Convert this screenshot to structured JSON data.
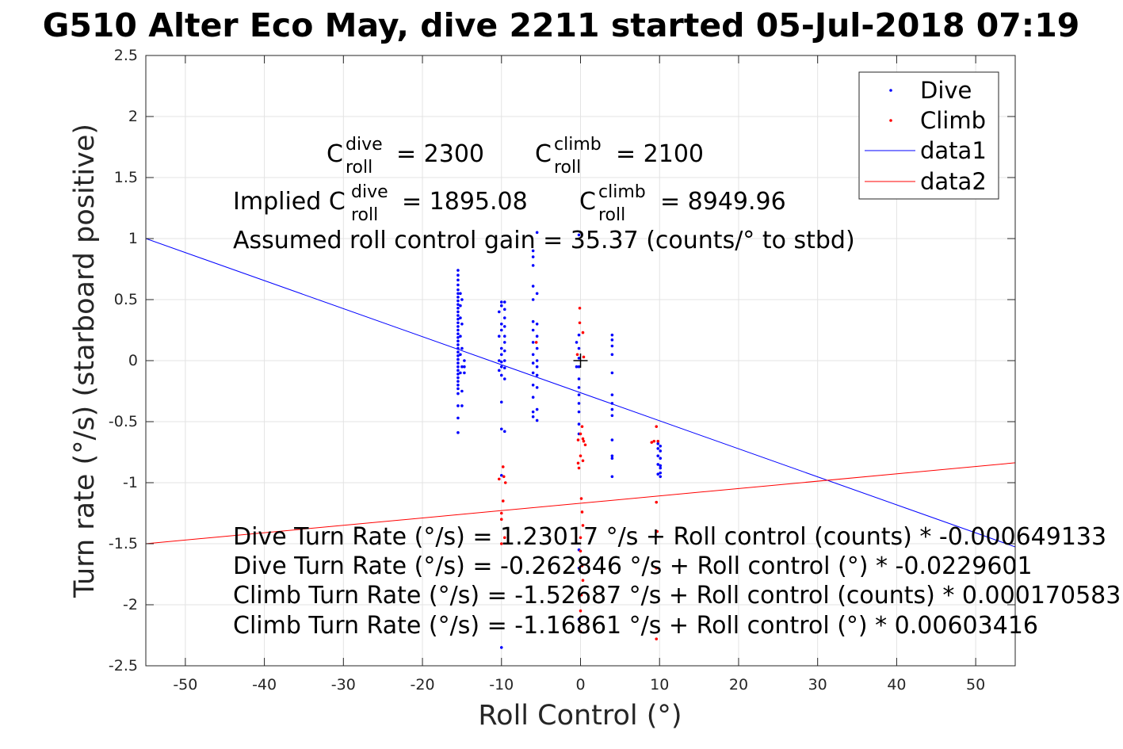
{
  "chart_data": {
    "type": "scatter",
    "title": "G510 Alter Eco May, dive 2211 started 05-Jul-2018 07:19",
    "xlabel": "Roll Control (°)",
    "ylabel": "Turn rate (°/s) (starboard positive)",
    "xlim": [
      -55,
      55
    ],
    "ylim": [
      -2.5,
      2.5
    ],
    "xticks": [
      -50,
      -40,
      -30,
      -20,
      -10,
      0,
      10,
      20,
      30,
      40,
      50
    ],
    "xtick_labels": [
      "-50",
      "-40",
      "-30",
      "-20",
      "-10",
      "0",
      "10",
      "20",
      "30",
      "40",
      "50"
    ],
    "yticks": [
      2.5,
      2,
      1.5,
      1,
      0.5,
      0,
      -0.5,
      -1,
      -1.5,
      -2,
      -2.5
    ],
    "ytick_labels": [
      "2.5",
      "2",
      "1.5",
      "1",
      "0.5",
      "0",
      "-0.5",
      "-1",
      "-1.5",
      "-2",
      "-2.5"
    ],
    "grid": true,
    "legend_position": "top-right",
    "legend": [
      "Dive",
      "Climb",
      "data1",
      "data2"
    ],
    "colors": {
      "dive": "#0000ff",
      "climb": "#ff0000",
      "marker": "#000000"
    },
    "series": [
      {
        "name": "Dive",
        "kind": "points",
        "points": [
          [
            -15.5,
            0.74
          ],
          [
            -15.5,
            0.7
          ],
          [
            -15.5,
            0.66
          ],
          [
            -15.5,
            0.62
          ],
          [
            -15.5,
            0.58
          ],
          [
            -15.5,
            0.55
          ],
          [
            -15.5,
            0.52
          ],
          [
            -15.5,
            0.49
          ],
          [
            -15.5,
            0.46
          ],
          [
            -15.5,
            0.43
          ],
          [
            -15.5,
            0.4
          ],
          [
            -15.5,
            0.37
          ],
          [
            -15.5,
            0.34
          ],
          [
            -15.5,
            0.31
          ],
          [
            -15.5,
            0.28
          ],
          [
            -15.5,
            0.25
          ],
          [
            -15.5,
            0.22
          ],
          [
            -15.5,
            0.19
          ],
          [
            -15.5,
            0.16
          ],
          [
            -15.5,
            0.13
          ],
          [
            -15.5,
            0.1
          ],
          [
            -15.5,
            0.07
          ],
          [
            -15.5,
            0.04
          ],
          [
            -15.5,
            0.01
          ],
          [
            -15.5,
            -0.02
          ],
          [
            -15.5,
            -0.05
          ],
          [
            -15.5,
            -0.08
          ],
          [
            -15.5,
            -0.11
          ],
          [
            -15.5,
            -0.14
          ],
          [
            -15.5,
            -0.17
          ],
          [
            -15.5,
            -0.2
          ],
          [
            -15.5,
            -0.23
          ],
          [
            -15.5,
            -0.27
          ],
          [
            -15.5,
            -0.37
          ],
          [
            -15.5,
            -0.47
          ],
          [
            -15.5,
            -0.59
          ],
          [
            -15.2,
            0.55
          ],
          [
            -15.2,
            0.45
          ],
          [
            -15.2,
            0.35
          ],
          [
            -15.2,
            0.2
          ],
          [
            -15.2,
            0.05
          ],
          [
            -15.2,
            -0.1
          ],
          [
            -15.0,
            0.5
          ],
          [
            -15.0,
            0.3
          ],
          [
            -15.0,
            0.1
          ],
          [
            -15.0,
            -0.05
          ],
          [
            -15.0,
            -0.25
          ],
          [
            -15.0,
            -0.37
          ],
          [
            -14.7,
            0.0
          ],
          [
            -14.7,
            -0.05
          ],
          [
            -14.7,
            -0.1
          ],
          [
            -10.0,
            0.48
          ],
          [
            -10.0,
            0.45
          ],
          [
            -10.0,
            0.3
          ],
          [
            -10.0,
            0.25
          ],
          [
            -10.0,
            0.1
          ],
          [
            -10.0,
            0.05
          ],
          [
            -10.0,
            -0.01
          ],
          [
            -10.0,
            -0.05
          ],
          [
            -10.0,
            -0.12
          ],
          [
            -10.0,
            -0.34
          ],
          [
            -10.0,
            -0.56
          ],
          [
            -10.0,
            -0.94
          ],
          [
            -10.0,
            -2.35
          ],
          [
            -10.3,
            0.4
          ],
          [
            -10.3,
            0.2
          ],
          [
            -10.3,
            0.0
          ],
          [
            -10.3,
            -0.08
          ],
          [
            -9.6,
            0.48
          ],
          [
            -9.6,
            0.42
          ],
          [
            -9.6,
            0.35
          ],
          [
            -9.6,
            0.28
          ],
          [
            -9.6,
            0.2
          ],
          [
            -9.6,
            0.15
          ],
          [
            -9.6,
            0.08
          ],
          [
            -9.6,
            0.0
          ],
          [
            -9.6,
            -0.06
          ],
          [
            -9.6,
            -0.15
          ],
          [
            -9.6,
            -0.58
          ],
          [
            -6.0,
            0.9
          ],
          [
            -6.0,
            0.85
          ],
          [
            -6.0,
            0.78
          ],
          [
            -6.0,
            0.61
          ],
          [
            -6.0,
            0.5
          ],
          [
            -6.0,
            0.32
          ],
          [
            -6.0,
            0.25
          ],
          [
            -6.0,
            0.15
          ],
          [
            -6.0,
            0.05
          ],
          [
            -6.0,
            -0.02
          ],
          [
            -6.0,
            -0.1
          ],
          [
            -6.0,
            -0.2
          ],
          [
            -6.0,
            -0.3
          ],
          [
            -6.0,
            -0.42
          ],
          [
            -6.0,
            -0.46
          ],
          [
            -5.5,
            1.05
          ],
          [
            -5.5,
            0.55
          ],
          [
            -5.5,
            0.3
          ],
          [
            -5.5,
            0.2
          ],
          [
            -5.5,
            0.1
          ],
          [
            -5.5,
            0.0
          ],
          [
            -5.5,
            -0.05
          ],
          [
            -5.5,
            -0.12
          ],
          [
            -5.5,
            -0.22
          ],
          [
            -5.5,
            -0.4
          ],
          [
            -5.5,
            -0.49
          ],
          [
            -0.2,
            1.03
          ],
          [
            -0.2,
            0.21
          ],
          [
            -0.2,
            0.1
          ],
          [
            -0.2,
            0.02
          ],
          [
            -0.2,
            -0.05
          ],
          [
            -0.2,
            -0.15
          ],
          [
            -0.2,
            -0.22
          ],
          [
            -0.2,
            -0.28
          ],
          [
            -0.2,
            -0.35
          ],
          [
            -0.2,
            -0.42
          ],
          [
            -0.2,
            -0.52
          ],
          [
            -0.2,
            -0.6
          ],
          [
            -0.2,
            -1.55
          ],
          [
            -0.2,
            -1.7
          ],
          [
            -0.2,
            -2.12
          ],
          [
            -0.5,
            0.15
          ],
          [
            -0.5,
            -0.05
          ],
          [
            4.0,
            0.21
          ],
          [
            4.0,
            0.17
          ],
          [
            4.0,
            0.12
          ],
          [
            4.0,
            0.05
          ],
          [
            4.0,
            -0.1
          ],
          [
            4.0,
            -0.28
          ],
          [
            4.0,
            -0.35
          ],
          [
            4.0,
            -0.4
          ],
          [
            4.0,
            -0.45
          ],
          [
            4.0,
            -0.65
          ],
          [
            4.0,
            -0.78
          ],
          [
            4.0,
            -0.8
          ],
          [
            4.0,
            -0.95
          ],
          [
            9.8,
            -0.68
          ],
          [
            9.8,
            -0.72
          ],
          [
            9.8,
            -0.78
          ],
          [
            9.8,
            -0.85
          ],
          [
            9.8,
            -0.93
          ],
          [
            10.1,
            -0.7
          ],
          [
            10.1,
            -0.74
          ],
          [
            10.1,
            -0.8
          ],
          [
            10.1,
            -0.86
          ],
          [
            10.1,
            -0.88
          ],
          [
            10.1,
            -0.92
          ],
          [
            10.1,
            -0.95
          ]
        ]
      },
      {
        "name": "Climb",
        "kind": "points",
        "points": [
          [
            -0.1,
            0.43
          ],
          [
            -0.1,
            0.31
          ],
          [
            0.3,
            0.23
          ],
          [
            -0.4,
            0.05
          ],
          [
            0.4,
            0.03
          ],
          [
            0.2,
            -0.54
          ],
          [
            0.0,
            -0.6
          ],
          [
            0.3,
            -0.64
          ],
          [
            -0.3,
            -0.65
          ],
          [
            0.4,
            -0.66
          ],
          [
            0.6,
            -0.69
          ],
          [
            0.0,
            -0.78
          ],
          [
            0.3,
            -0.82
          ],
          [
            -0.3,
            -0.84
          ],
          [
            -0.2,
            -0.88
          ],
          [
            0.1,
            -1.13
          ],
          [
            0.2,
            -1.24
          ],
          [
            0.3,
            -1.35
          ],
          [
            0.0,
            -1.45
          ],
          [
            0.0,
            -1.56
          ],
          [
            0.2,
            -1.68
          ],
          [
            0.3,
            -1.8
          ],
          [
            0.1,
            -1.92
          ],
          [
            0.0,
            -2.05
          ],
          [
            0.0,
            -2.22
          ],
          [
            -9.8,
            -0.87
          ],
          [
            -9.7,
            -0.95
          ],
          [
            -10.3,
            -0.97
          ],
          [
            -9.5,
            -1.0
          ],
          [
            -9.8,
            -1.15
          ],
          [
            -10.0,
            -1.25
          ],
          [
            -10.0,
            -1.3
          ],
          [
            -9.6,
            -1.45
          ],
          [
            -10.0,
            -1.5
          ],
          [
            -5.6,
            0.15
          ],
          [
            9.0,
            -0.67
          ],
          [
            9.3,
            -0.66
          ],
          [
            9.6,
            -0.54
          ],
          [
            9.8,
            -0.66
          ],
          [
            9.6,
            -1.16
          ],
          [
            9.7,
            -1.4
          ],
          [
            9.6,
            -1.7
          ],
          [
            9.6,
            -2.28
          ]
        ]
      },
      {
        "name": "data1",
        "kind": "line",
        "points": [
          [
            -55,
            1.0
          ],
          [
            55,
            -1.526
          ]
        ]
      },
      {
        "name": "data2",
        "kind": "line",
        "points": [
          [
            -55,
            -1.5
          ],
          [
            55,
            -0.837
          ]
        ]
      }
    ],
    "marker": {
      "symbol": "+",
      "point": [
        0,
        0
      ]
    },
    "annotations": {
      "c_roll_dive": {
        "base": "C",
        "sup": "dive",
        "sub": "roll",
        "value": "= 2300"
      },
      "c_roll_climb": {
        "base": "C",
        "sup": "climb",
        "sub": "roll",
        "value": "= 2100"
      },
      "implied_dive": {
        "prefix": "Implied C",
        "sup": "dive",
        "sub": "roll",
        "value": "= 1895.08"
      },
      "implied_climb": {
        "base": "C",
        "sup": "climb",
        "sub": "roll",
        "value": "= 8949.96"
      },
      "gain": "Assumed roll control gain = 35.37 (counts/° to stbd)",
      "fits": [
        "Dive Turn Rate (°/s) = 1.23017 °/s + Roll control (counts) * -0.000649133",
        "Dive Turn Rate (°/s) = -0.262846 °/s + Roll control (°) * -0.0229601",
        "Climb Turn Rate (°/s) = -1.52687 °/s + Roll control (counts) * 0.000170583",
        "Climb Turn Rate (°/s) = -1.16861 °/s + Roll control (°) * 0.00603416"
      ]
    }
  }
}
